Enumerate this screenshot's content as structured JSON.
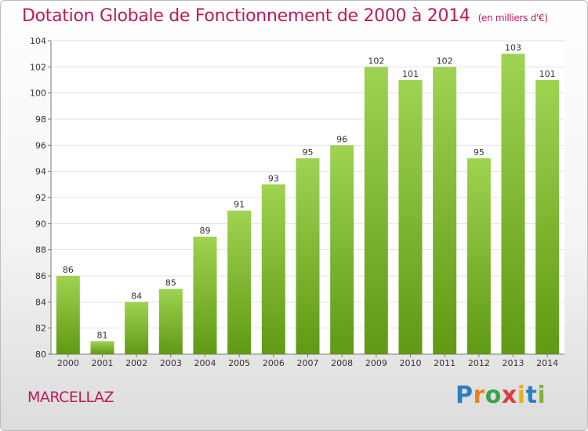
{
  "header": {
    "title": "Dotation Globale de Fonctionnement de 2000 à 2014",
    "subtitle": "(en milliers d'€)"
  },
  "footer": {
    "commune": "MARCELLAZ",
    "logo_text": "Proxiti"
  },
  "colors": {
    "title": "#c0185a",
    "bar_top": "#9fd352",
    "bar_bottom": "#5f9a14",
    "grid": "#e2e2e2"
  },
  "chart_data": {
    "type": "bar",
    "title": "Dotation Globale de Fonctionnement de 2000 à 2014",
    "subtitle": "(en milliers d'€)",
    "categories": [
      "2000",
      "2001",
      "2002",
      "2003",
      "2004",
      "2005",
      "2006",
      "2007",
      "2008",
      "2009",
      "2010",
      "2011",
      "2012",
      "2013",
      "2014"
    ],
    "values": [
      86,
      81,
      84,
      85,
      89,
      91,
      93,
      95,
      96,
      102,
      101,
      102,
      95,
      103,
      101
    ],
    "ylim": [
      80,
      104
    ],
    "yticks": [
      80,
      82,
      84,
      86,
      88,
      90,
      92,
      94,
      96,
      98,
      100,
      102,
      104
    ],
    "grid": true,
    "xlabel": "",
    "ylabel": ""
  }
}
